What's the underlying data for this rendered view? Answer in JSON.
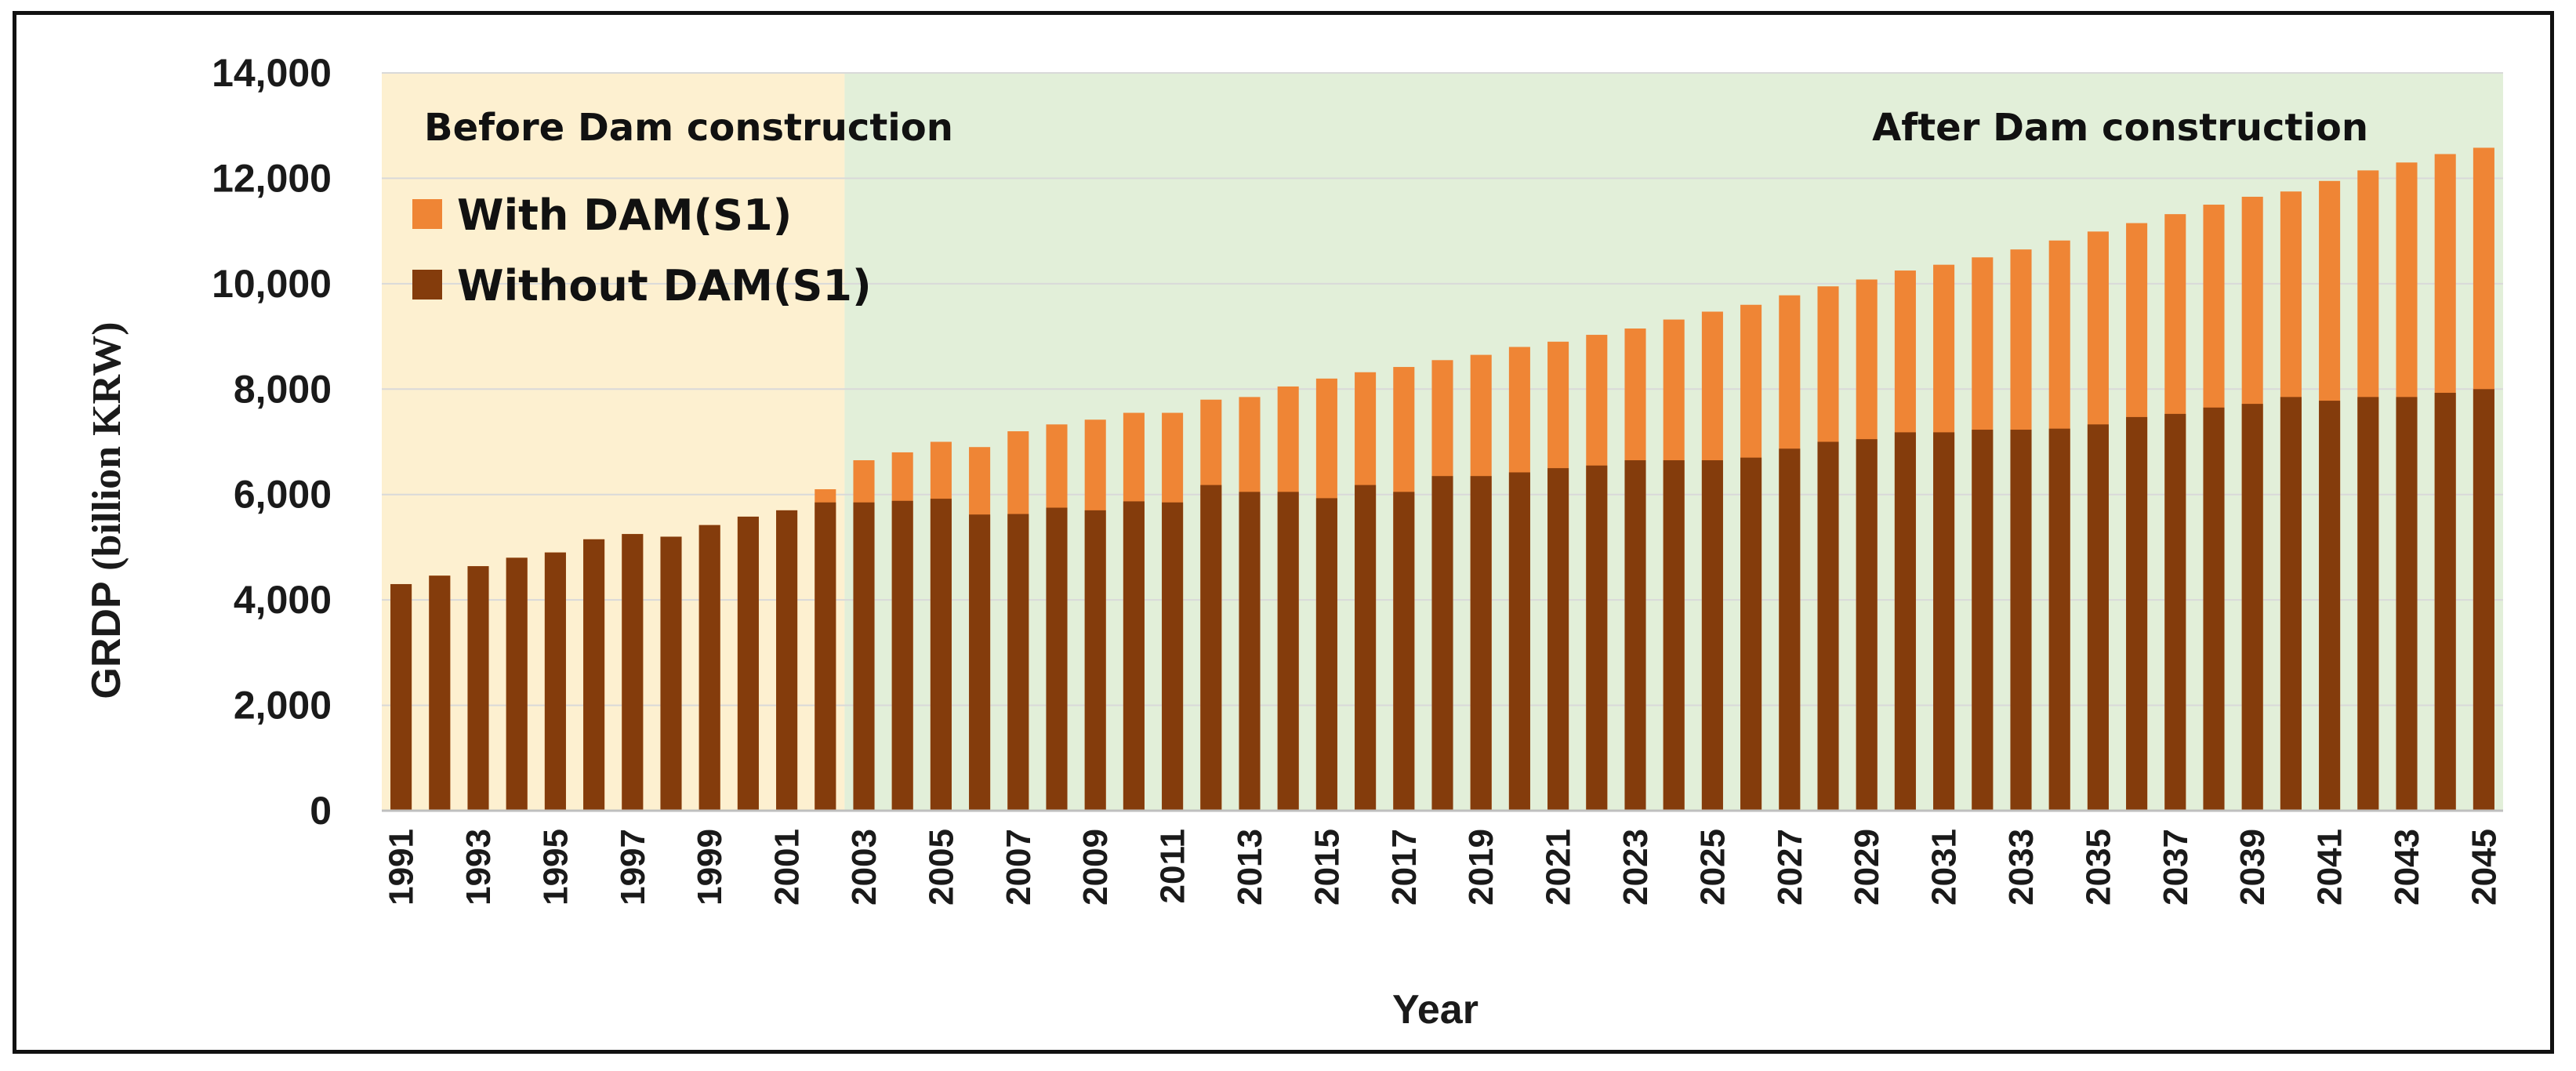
{
  "chart_data": {
    "type": "bar",
    "title": "",
    "xlabel": "Year",
    "ylabel": "GRDP (billion KRW)",
    "ylabel_parts": [
      "GRDP",
      "(billion KRW)"
    ],
    "ylim": [
      0,
      14000
    ],
    "ytick_values": [
      0,
      2000,
      4000,
      6000,
      8000,
      10000,
      12000,
      14000
    ],
    "ytick_labels": [
      "0",
      "2,000",
      "4,000",
      "6,000",
      "8,000",
      "10,000",
      "12,000",
      "14,000"
    ],
    "grid": true,
    "legend_position": "top-left",
    "barmode": "overlay",
    "regions": [
      {
        "label": "Before Dam construction",
        "from": 1991,
        "to": 2002.5,
        "color": "#fdf0d0"
      },
      {
        "label": "After Dam construction",
        "from": 2002.5,
        "to": 2045,
        "color": "#e2efd9"
      }
    ],
    "categories": [
      1991,
      1992,
      1993,
      1994,
      1995,
      1996,
      1997,
      1998,
      1999,
      2000,
      2001,
      2002,
      2003,
      2004,
      2005,
      2006,
      2007,
      2008,
      2009,
      2010,
      2011,
      2012,
      2013,
      2014,
      2015,
      2016,
      2017,
      2018,
      2019,
      2020,
      2021,
      2022,
      2023,
      2024,
      2025,
      2026,
      2027,
      2028,
      2029,
      2030,
      2031,
      2032,
      2033,
      2034,
      2035,
      2036,
      2037,
      2038,
      2039,
      2040,
      2041,
      2042,
      2043,
      2044,
      2045
    ],
    "xtick_labels": [
      "1991",
      "1993",
      "1995",
      "1997",
      "1999",
      "2001",
      "2003",
      "2005",
      "2007",
      "2009",
      "2011",
      "2013",
      "2015",
      "2017",
      "2019",
      "2021",
      "2023",
      "2025",
      "2027",
      "2029",
      "2031",
      "2033",
      "2035",
      "2037",
      "2039",
      "2041",
      "2043",
      "2045"
    ],
    "series": [
      {
        "name": "With DAM(S1)",
        "color": "#ef8535",
        "values": [
          4300,
          4460,
          4640,
          4800,
          4900,
          5150,
          5250,
          5200,
          5420,
          5580,
          5700,
          6100,
          6650,
          6800,
          7000,
          6900,
          7200,
          7330,
          7420,
          7550,
          7550,
          7800,
          7850,
          8050,
          8200,
          8320,
          8420,
          8550,
          8650,
          8800,
          8900,
          9030,
          9150,
          9320,
          9470,
          9600,
          9780,
          9950,
          10080,
          10250,
          10360,
          10500,
          10650,
          10820,
          10990,
          11150,
          11320,
          11500,
          11650,
          11750,
          11950,
          12150,
          12300,
          12460,
          12580
        ]
      },
      {
        "name": "Without DAM(S1)",
        "color": "#843c0c",
        "values": [
          4300,
          4460,
          4640,
          4800,
          4900,
          5150,
          5250,
          5200,
          5420,
          5580,
          5700,
          5850,
          5850,
          5880,
          5920,
          5620,
          5630,
          5750,
          5700,
          5870,
          5850,
          6180,
          6050,
          6050,
          5930,
          6180,
          6050,
          6350,
          6350,
          6420,
          6500,
          6550,
          6650,
          6650,
          6650,
          6700,
          6870,
          7000,
          7050,
          7180,
          7180,
          7230,
          7230,
          7250,
          7330,
          7470,
          7530,
          7650,
          7720,
          7850,
          7780,
          7850,
          7850,
          7930,
          8000
        ]
      }
    ]
  }
}
